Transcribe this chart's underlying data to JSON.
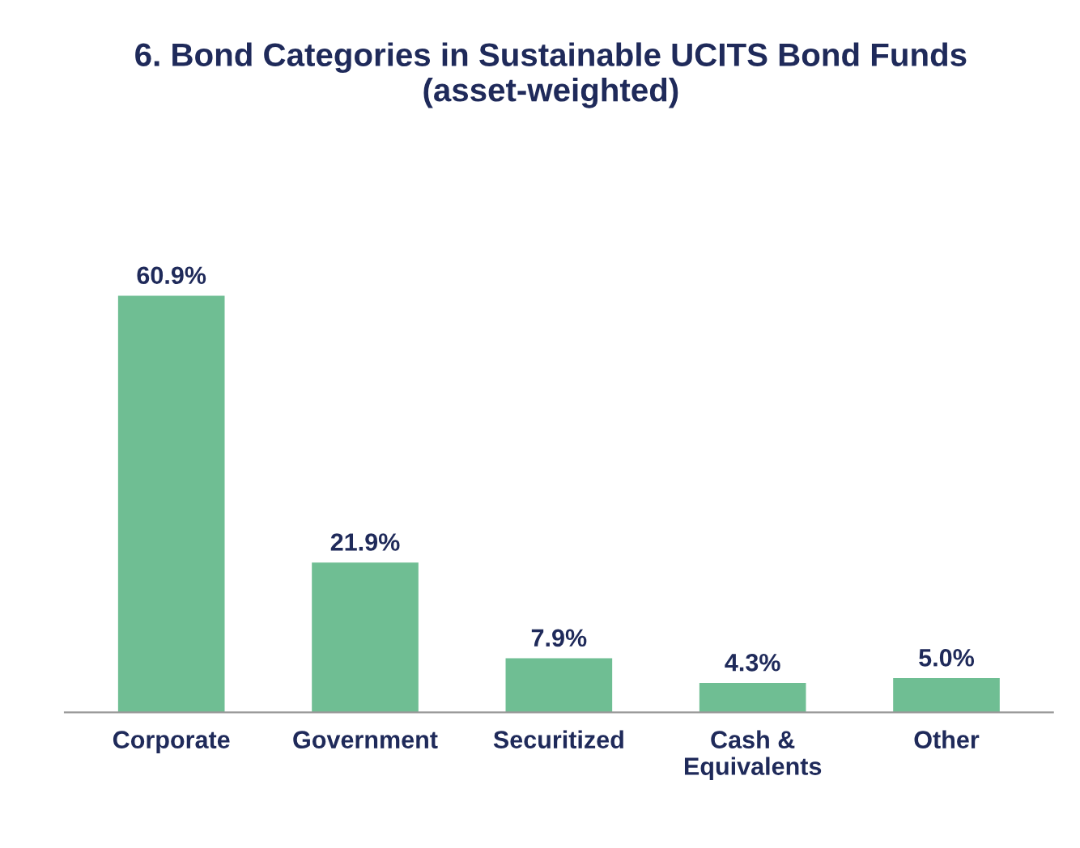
{
  "chart_data": {
    "type": "bar",
    "title": "6. Bond Categories in Sustainable UCITS Bond Funds\n(asset-weighted)",
    "categories": [
      "Corporate",
      "Government",
      "Securitized",
      "Cash &\nEquivalents",
      "Other"
    ],
    "values": [
      60.9,
      21.9,
      7.9,
      4.3,
      5.0
    ],
    "value_labels": [
      "60.9%",
      "21.9%",
      "7.9%",
      "4.3%",
      "5.0%"
    ],
    "color": "#6fbe93",
    "grid": false,
    "legend": false
  }
}
